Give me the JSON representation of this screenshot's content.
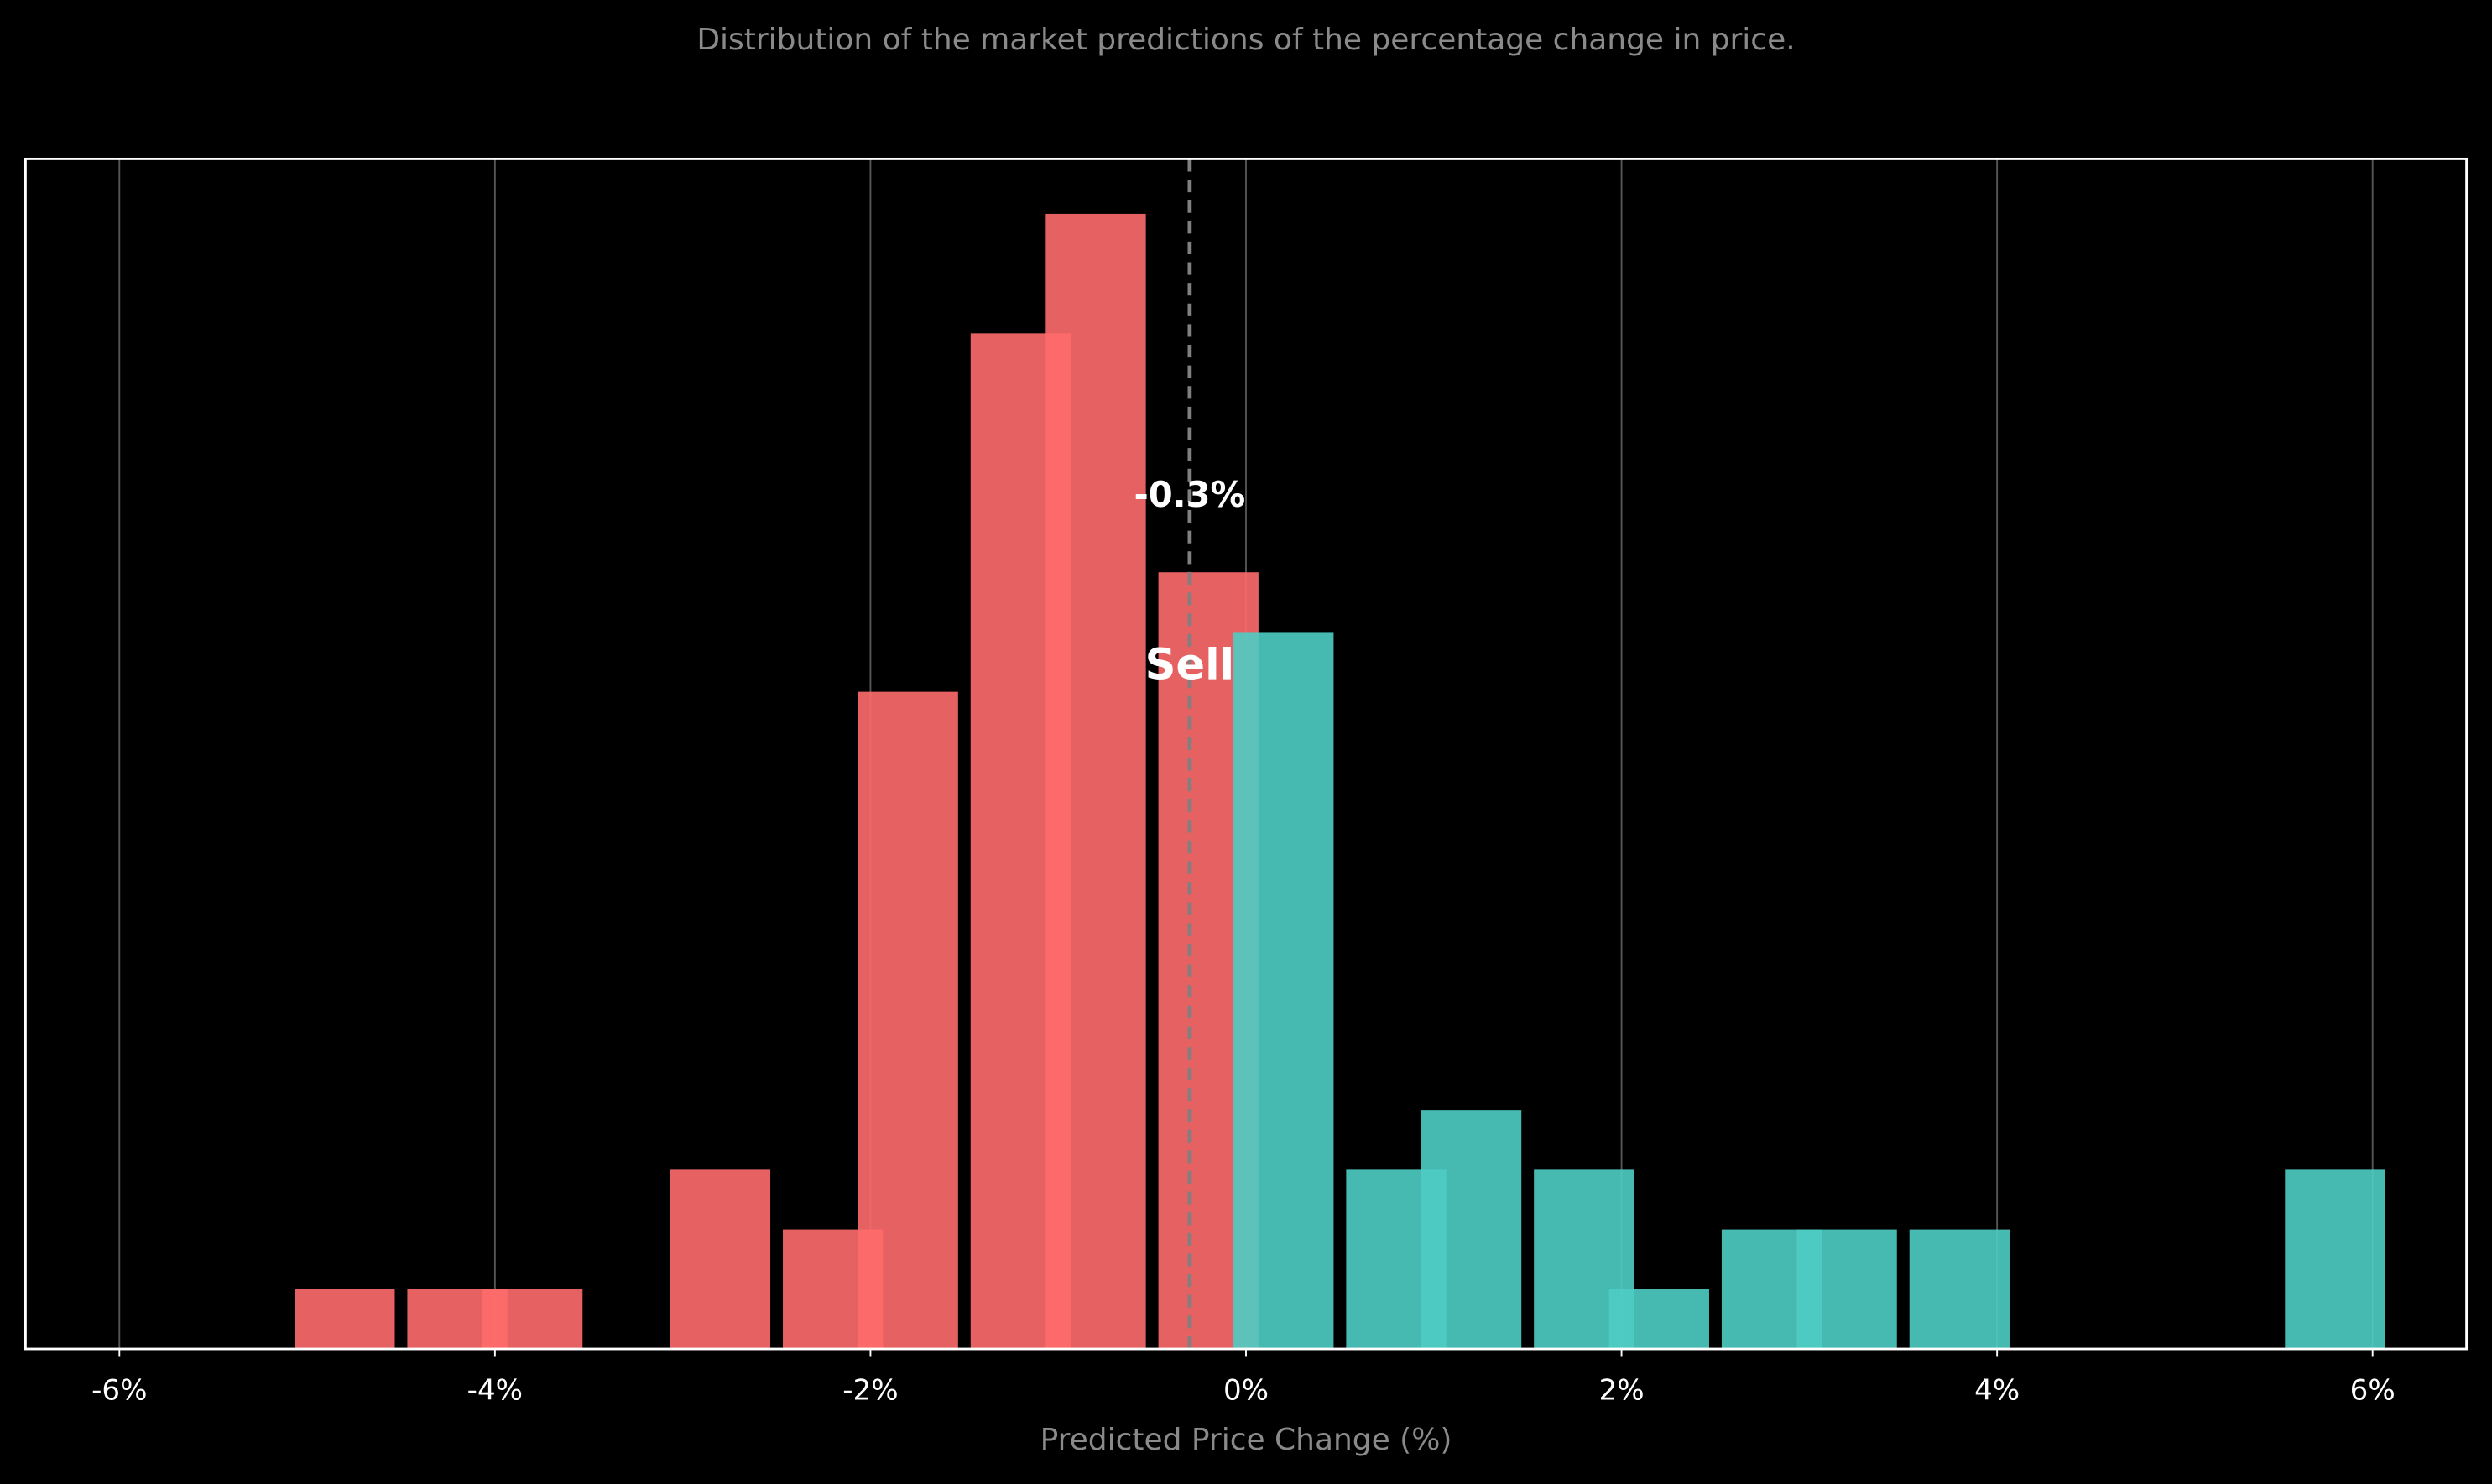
{
  "chart_data": {
    "type": "bar",
    "title": "Distribution of the market predictions of the percentage change in price.",
    "xlabel": "Predicted Price Change (%)",
    "series": [
      {
        "color": "#ff6b6b",
        "x": [
          -4.8,
          -4.2,
          -3.8,
          -2.8,
          -2.2,
          -1.8,
          -1.2,
          -0.8,
          -0.2
        ],
        "values": [
          1,
          1,
          1,
          3,
          2,
          11,
          17,
          19,
          13
        ]
      },
      {
        "color": "#4ecdc4",
        "x": [
          0.2,
          0.8,
          1.2,
          1.8,
          2.2,
          2.8,
          3.2,
          3.8,
          5.8
        ],
        "values": [
          12,
          3,
          4,
          3,
          1,
          2,
          2,
          2,
          3
        ]
      }
    ],
    "xlim": [
      -6.5,
      6.5
    ],
    "ylim": [
      0,
      19.92
    ],
    "xticks": [
      {
        "value": -6,
        "label": "-6%"
      },
      {
        "value": -4,
        "label": "-4%"
      },
      {
        "value": -2,
        "label": "-2%"
      },
      {
        "value": 0,
        "label": "0%"
      },
      {
        "value": 2,
        "label": "2%"
      },
      {
        "value": 4,
        "label": "4%"
      },
      {
        "value": 6,
        "label": "6%"
      }
    ],
    "grid": true,
    "mean": {
      "value": -0.3,
      "label": "-0.3%"
    },
    "signal": "Sell"
  }
}
